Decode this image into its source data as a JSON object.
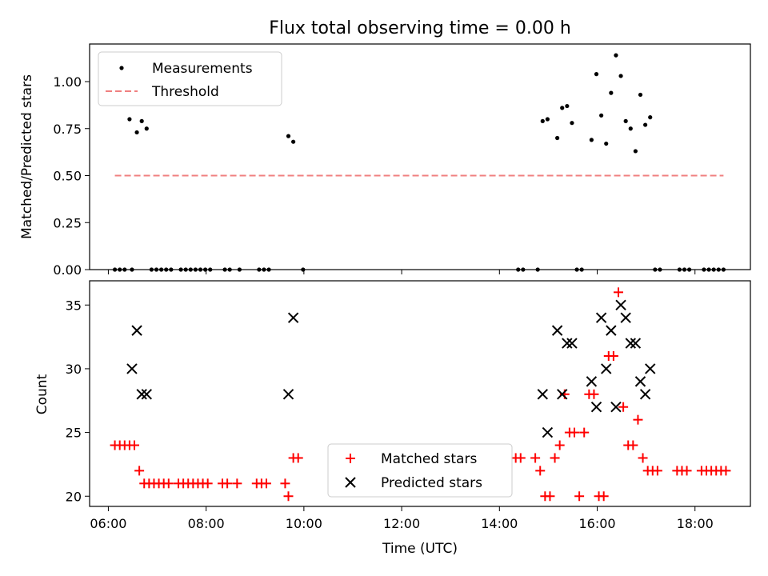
{
  "chart_data": [
    {
      "type": "scatter",
      "title": "Flux total observing time = 0.00 h",
      "xlabel": "",
      "ylabel": "Matched/Predicted stars",
      "xlim": [
        "05:37",
        "19:08"
      ],
      "ylim": [
        0,
        1.2
      ],
      "yticks": [
        "0.00",
        "0.25",
        "0.50",
        "0.75",
        "1.00"
      ],
      "legend": {
        "placement": "upper-left",
        "entries": [
          "Measurements",
          "Threshold"
        ]
      },
      "colors": {
        "measurements": "#000000",
        "threshold": "#f08080"
      },
      "series": [
        {
          "name": "Measurements",
          "x": [
            "06:08",
            "06:14",
            "06:20",
            "06:26",
            "06:29",
            "06:35",
            "06:41",
            "06:47",
            "06:53",
            "06:59",
            "07:05",
            "07:11",
            "07:17",
            "07:29",
            "07:35",
            "07:41",
            "07:47",
            "07:53",
            "07:59",
            "08:05",
            "08:23",
            "08:29",
            "08:41",
            "09:05",
            "09:11",
            "09:17",
            "09:41",
            "09:47",
            "09:59",
            "14:23",
            "14:29",
            "14:47",
            "14:53",
            "14:59",
            "15:11",
            "15:17",
            "15:23",
            "15:29",
            "15:35",
            "15:41",
            "15:53",
            "15:59",
            "16:05",
            "16:11",
            "16:17",
            "16:23",
            "16:29",
            "16:35",
            "16:41",
            "16:47",
            "16:53",
            "16:59",
            "17:05",
            "17:11",
            "17:17",
            "17:41",
            "17:47",
            "17:53",
            "18:11",
            "18:17",
            "18:23",
            "18:29",
            "18:35"
          ],
          "y": [
            0,
            0,
            0,
            0.8,
            0,
            0.73,
            0.79,
            0.75,
            0,
            0,
            0,
            0,
            0,
            0,
            0,
            0,
            0,
            0,
            0,
            0,
            0,
            0,
            0,
            0,
            0,
            0,
            0.71,
            0.68,
            0,
            0,
            0,
            0,
            0.79,
            0.8,
            0.7,
            0.86,
            0.87,
            0.78,
            0,
            0,
            0.69,
            1.04,
            0.82,
            0.67,
            0.94,
            1.14,
            1.03,
            0.79,
            0.75,
            0.63,
            0.93,
            0.77,
            0.81,
            0,
            0,
            0,
            0,
            0,
            0,
            0,
            0,
            0,
            0
          ]
        },
        {
          "name": "Threshold",
          "x": [
            "06:08",
            "18:35"
          ],
          "y": [
            0.5,
            0.5
          ]
        }
      ]
    },
    {
      "type": "scatter",
      "title": "",
      "xlabel": "Time (UTC)",
      "ylabel": "Count",
      "xlim": [
        "05:37",
        "19:08"
      ],
      "ylim": [
        19.2,
        36.9
      ],
      "xticks": [
        "06:00",
        "08:00",
        "10:00",
        "12:00",
        "14:00",
        "16:00",
        "18:00"
      ],
      "yticks": [
        "20",
        "25",
        "30",
        "35"
      ],
      "legend": {
        "placement": "lower-center",
        "entries": [
          "Matched stars",
          "Predicted stars"
        ]
      },
      "colors": {
        "matched": "#ff0000",
        "predicted": "#000000"
      },
      "series": [
        {
          "name": "Matched stars",
          "x": [
            "06:08",
            "06:14",
            "06:20",
            "06:26",
            "06:32",
            "06:38",
            "06:44",
            "06:50",
            "06:56",
            "07:02",
            "07:08",
            "07:14",
            "07:26",
            "07:32",
            "07:38",
            "07:44",
            "07:50",
            "07:56",
            "08:02",
            "08:20",
            "08:26",
            "08:38",
            "09:02",
            "09:08",
            "09:14",
            "09:37",
            "09:41",
            "09:47",
            "09:53",
            "14:20",
            "14:26",
            "14:44",
            "14:50",
            "14:56",
            "15:02",
            "15:08",
            "15:14",
            "15:20",
            "15:26",
            "15:32",
            "15:38",
            "15:44",
            "15:50",
            "15:56",
            "16:02",
            "16:08",
            "16:14",
            "16:20",
            "16:26",
            "16:32",
            "16:38",
            "16:44",
            "16:50",
            "16:56",
            "17:02",
            "17:08",
            "17:14",
            "17:38",
            "17:44",
            "17:50",
            "18:08",
            "18:14",
            "18:20",
            "18:26",
            "18:32",
            "18:38"
          ],
          "y": [
            24,
            24,
            24,
            24,
            24,
            22,
            21,
            21,
            21,
            21,
            21,
            21,
            21,
            21,
            21,
            21,
            21,
            21,
            21,
            21,
            21,
            21,
            21,
            21,
            21,
            21,
            20,
            23,
            23,
            23,
            23,
            23,
            22,
            20,
            20,
            23,
            24,
            28,
            25,
            25,
            20,
            25,
            28,
            28,
            20,
            20,
            31,
            31,
            36,
            27,
            24,
            24,
            26,
            23,
            22,
            22,
            22,
            22,
            22,
            22,
            22,
            22,
            22,
            22,
            22,
            22
          ]
        },
        {
          "name": "Predicted stars",
          "x": [
            "06:29",
            "06:35",
            "06:41",
            "06:47",
            "09:41",
            "09:47",
            "14:53",
            "14:59",
            "15:11",
            "15:17",
            "15:23",
            "15:29",
            "15:53",
            "15:59",
            "16:05",
            "16:11",
            "16:17",
            "16:23",
            "16:29",
            "16:35",
            "16:41",
            "16:47",
            "16:53",
            "16:59",
            "17:05"
          ],
          "y": [
            30,
            33,
            28,
            28,
            28,
            34,
            28,
            25,
            33,
            28,
            32,
            32,
            29,
            27,
            34,
            30,
            33,
            27,
            35,
            34,
            32,
            32,
            29,
            28,
            30
          ]
        }
      ]
    }
  ]
}
